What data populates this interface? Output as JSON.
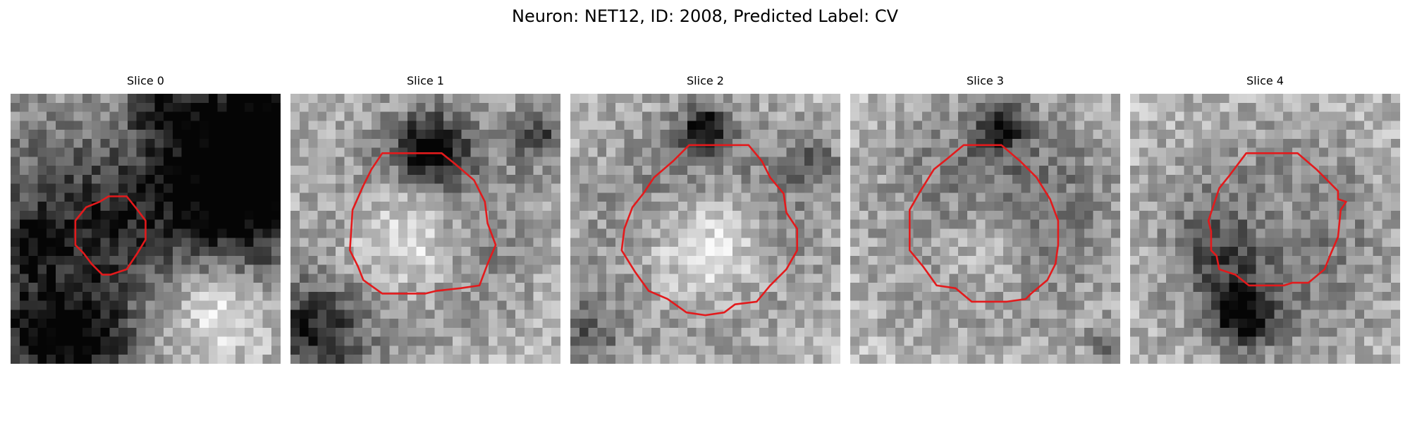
{
  "figure": {
    "title": "Neuron: NET12, ID: 2008, Predicted Label: CV",
    "contour_color": "#e31a1c",
    "colormap": "grayscale",
    "axes_visible": false
  },
  "slices": [
    {
      "title": "Slice 0",
      "dark": [
        [
          6,
          0.55,
          0.62,
          0.65
        ],
        [
          0.68,
          0.16,
          0.25,
          0.55
        ],
        [
          0.97,
          0.14,
          0.12,
          0.55
        ],
        [
          0.9,
          0.42,
          0.2,
          0.5
        ],
        [
          0.27,
          0.5,
          0.3,
          0.5
        ],
        [
          0.1,
          0.9,
          0.13,
          0.45
        ],
        [
          0.3,
          0.93,
          0.12,
          0.35
        ],
        [
          0.08,
          0.55,
          0.07,
          0.25
        ],
        [
          0.55,
          0.05,
          0.08,
          0.3
        ]
      ],
      "light": [
        [
          0.75,
          0.78,
          0.16,
          0.35
        ],
        [
          0.45,
          0.15,
          0.2,
          0.3
        ]
      ],
      "base": 0.66
    },
    {
      "title": "Slice 1",
      "dark": [
        [
          0.5,
          0.47,
          0.28,
          0.45
        ],
        [
          0.52,
          0.2,
          0.09,
          0.6
        ],
        [
          0.92,
          0.15,
          0.07,
          0.45
        ],
        [
          0.05,
          0.85,
          0.12,
          0.35
        ],
        [
          0.15,
          0.95,
          0.15,
          0.3
        ]
      ],
      "light": [
        [
          0.44,
          0.52,
          0.16,
          0.55
        ]
      ],
      "base": 0.75
    },
    {
      "title": "Slice 2",
      "dark": [
        [
          0.5,
          0.5,
          0.3,
          0.48
        ],
        [
          0.5,
          0.13,
          0.06,
          0.6
        ],
        [
          0.05,
          0.9,
          0.1,
          0.35
        ],
        [
          0.9,
          0.25,
          0.08,
          0.25
        ]
      ],
      "light": [
        [
          0.5,
          0.56,
          0.17,
          0.6
        ]
      ],
      "base": 0.76
    },
    {
      "title": "Slice 3",
      "dark": [
        [
          0.55,
          0.45,
          0.3,
          0.45
        ],
        [
          0.55,
          0.12,
          0.06,
          0.55
        ],
        [
          0.95,
          0.92,
          0.05,
          0.3
        ]
      ],
      "light": [
        [
          0.5,
          0.55,
          0.15,
          0.35
        ]
      ],
      "base": 0.76
    },
    {
      "title": "Slice 4",
      "dark": [
        [
          0.53,
          0.55,
          0.28,
          0.4
        ],
        [
          0.42,
          0.82,
          0.08,
          0.6
        ],
        [
          0.35,
          0.58,
          0.12,
          0.25
        ]
      ],
      "light": [
        [
          0.52,
          0.5,
          0.14,
          0.25
        ]
      ],
      "base": 0.74
    }
  ],
  "contours": [
    [
      [
        0.363,
        0.38
      ],
      [
        0.43,
        0.38
      ],
      [
        0.47,
        0.43
      ],
      [
        0.5,
        0.47
      ],
      [
        0.5,
        0.54
      ],
      [
        0.47,
        0.59
      ],
      [
        0.45,
        0.62
      ],
      [
        0.43,
        0.65
      ],
      [
        0.37,
        0.67
      ],
      [
        0.34,
        0.67
      ],
      [
        0.3,
        0.63
      ],
      [
        0.27,
        0.59
      ],
      [
        0.24,
        0.56
      ],
      [
        0.24,
        0.47
      ],
      [
        0.28,
        0.42
      ],
      [
        0.33,
        0.4
      ]
    ],
    [
      [
        0.34,
        0.22
      ],
      [
        0.56,
        0.22
      ],
      [
        0.61,
        0.26
      ],
      [
        0.68,
        0.32
      ],
      [
        0.72,
        0.4
      ],
      [
        0.73,
        0.48
      ],
      [
        0.76,
        0.56
      ],
      [
        0.73,
        0.63
      ],
      [
        0.7,
        0.71
      ],
      [
        0.63,
        0.72
      ],
      [
        0.54,
        0.73
      ],
      [
        0.5,
        0.74
      ],
      [
        0.34,
        0.74
      ],
      [
        0.27,
        0.69
      ],
      [
        0.25,
        0.64
      ],
      [
        0.22,
        0.58
      ],
      [
        0.23,
        0.43
      ],
      [
        0.27,
        0.34
      ],
      [
        0.3,
        0.28
      ]
    ],
    [
      [
        0.44,
        0.19
      ],
      [
        0.66,
        0.19
      ],
      [
        0.71,
        0.25
      ],
      [
        0.74,
        0.31
      ],
      [
        0.79,
        0.37
      ],
      [
        0.8,
        0.44
      ],
      [
        0.84,
        0.5
      ],
      [
        0.84,
        0.58
      ],
      [
        0.8,
        0.65
      ],
      [
        0.74,
        0.71
      ],
      [
        0.69,
        0.77
      ],
      [
        0.61,
        0.78
      ],
      [
        0.57,
        0.81
      ],
      [
        0.5,
        0.82
      ],
      [
        0.43,
        0.81
      ],
      [
        0.36,
        0.76
      ],
      [
        0.29,
        0.73
      ],
      [
        0.24,
        0.66
      ],
      [
        0.19,
        0.58
      ],
      [
        0.2,
        0.5
      ],
      [
        0.23,
        0.42
      ],
      [
        0.27,
        0.37
      ],
      [
        0.31,
        0.31
      ],
      [
        0.38,
        0.25
      ]
    ],
    [
      [
        0.42,
        0.19
      ],
      [
        0.56,
        0.19
      ],
      [
        0.63,
        0.25
      ],
      [
        0.69,
        0.31
      ],
      [
        0.74,
        0.39
      ],
      [
        0.77,
        0.47
      ],
      [
        0.77,
        0.56
      ],
      [
        0.76,
        0.63
      ],
      [
        0.73,
        0.69
      ],
      [
        0.67,
        0.74
      ],
      [
        0.65,
        0.76
      ],
      [
        0.58,
        0.77
      ],
      [
        0.45,
        0.77
      ],
      [
        0.39,
        0.72
      ],
      [
        0.32,
        0.71
      ],
      [
        0.27,
        0.64
      ],
      [
        0.22,
        0.58
      ],
      [
        0.22,
        0.43
      ],
      [
        0.26,
        0.36
      ],
      [
        0.31,
        0.28
      ],
      [
        0.36,
        0.24
      ]
    ],
    [
      [
        0.43,
        0.22
      ],
      [
        0.62,
        0.22
      ],
      [
        0.69,
        0.28
      ],
      [
        0.77,
        0.36
      ],
      [
        0.77,
        0.39
      ],
      [
        0.8,
        0.4
      ],
      [
        0.78,
        0.43
      ],
      [
        0.77,
        0.53
      ],
      [
        0.74,
        0.6
      ],
      [
        0.72,
        0.65
      ],
      [
        0.66,
        0.7
      ],
      [
        0.6,
        0.7
      ],
      [
        0.57,
        0.71
      ],
      [
        0.44,
        0.71
      ],
      [
        0.39,
        0.67
      ],
      [
        0.33,
        0.65
      ],
      [
        0.32,
        0.6
      ],
      [
        0.3,
        0.58
      ],
      [
        0.3,
        0.51
      ],
      [
        0.29,
        0.47
      ],
      [
        0.31,
        0.41
      ],
      [
        0.33,
        0.35
      ],
      [
        0.37,
        0.3
      ]
    ]
  ]
}
